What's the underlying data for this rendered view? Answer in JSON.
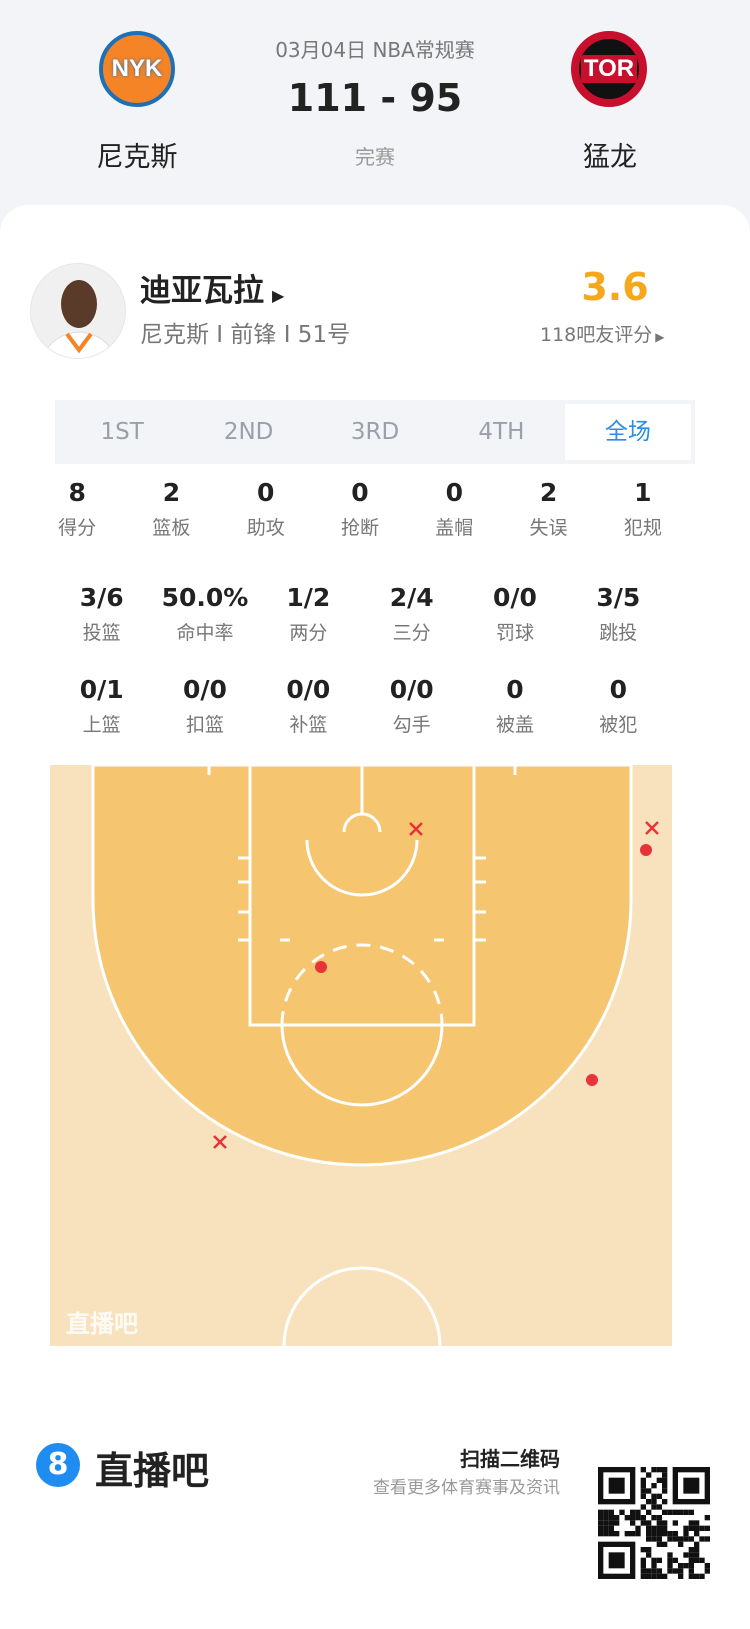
{
  "match": {
    "date_league": "03月04日 NBA常规赛",
    "score": "111 - 95",
    "status": "完赛",
    "home": {
      "name": "尼克斯",
      "logo_text": "NYK"
    },
    "away": {
      "name": "猛龙",
      "logo_text": "TOR"
    }
  },
  "player": {
    "name": "迪亚瓦拉",
    "info": "尼克斯 I 前锋 I 51号",
    "rating": "3.6",
    "rating_label": "118吧友评分",
    "rating_color": "#f6a71b"
  },
  "tabs": [
    {
      "label": "1ST"
    },
    {
      "label": "2ND"
    },
    {
      "label": "3RD"
    },
    {
      "label": "4TH"
    },
    {
      "label": "全场",
      "active": true
    }
  ],
  "stats_row1": [
    {
      "v": "8",
      "l": "得分"
    },
    {
      "v": "2",
      "l": "篮板"
    },
    {
      "v": "0",
      "l": "助攻"
    },
    {
      "v": "0",
      "l": "抢断"
    },
    {
      "v": "0",
      "l": "盖帽"
    },
    {
      "v": "2",
      "l": "失误"
    },
    {
      "v": "1",
      "l": "犯规"
    }
  ],
  "stats_row2": [
    {
      "v": "3/6",
      "l": "投篮"
    },
    {
      "v": "50.0%",
      "l": "命中率"
    },
    {
      "v": "1/2",
      "l": "两分"
    },
    {
      "v": "2/4",
      "l": "三分"
    },
    {
      "v": "0/0",
      "l": "罚球"
    },
    {
      "v": "3/5",
      "l": "跳投"
    }
  ],
  "stats_row3": [
    {
      "v": "0/1",
      "l": "上篮"
    },
    {
      "v": "0/0",
      "l": "扣篮"
    },
    {
      "v": "0/0",
      "l": "补篮"
    },
    {
      "v": "0/0",
      "l": "勾手"
    },
    {
      "v": "0",
      "l": "被盖"
    },
    {
      "v": "0",
      "l": "被犯"
    }
  ],
  "shot_chart": {
    "watermark": "直播吧",
    "shots": [
      {
        "result": "missed"
      },
      {
        "result": "missed"
      },
      {
        "result": "made"
      },
      {
        "result": "made"
      },
      {
        "result": "made"
      },
      {
        "result": "missed"
      }
    ],
    "made_color": "#e8333a",
    "missed_color": "#e8333a"
  },
  "footer": {
    "brand": "直播吧",
    "brand_badge": "8",
    "scan_title": "扫描二维码",
    "scan_sub": "查看更多体育赛事及资讯"
  }
}
